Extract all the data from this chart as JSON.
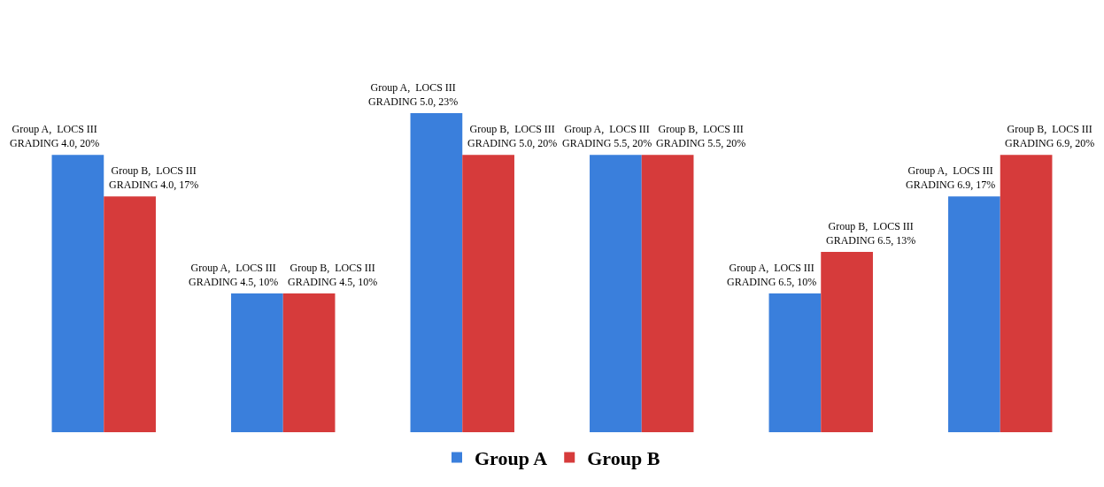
{
  "chart_data": {
    "type": "bar",
    "categories": [
      null,
      null,
      null,
      null,
      null,
      null
    ],
    "series": [
      {
        "name": "Group A",
        "color": "#3a7fdc",
        "values": [
          20,
          10,
          23,
          20,
          10,
          17
        ],
        "value_labels": [
          "Group A,  LOCS III\nGRADING 4.0, 20%",
          "Group A,  LOCS III\nGRADING 4.5, 10%",
          "Group A,  LOCS III\nGRADING 5.0, 23%",
          "Group A,  LOCS III\nGRADING 5.5, 20%",
          "Group A,  LOCS III\nGRADING 6.5, 10%",
          "Group A,  LOCS III\nGRADING 6.9, 17%"
        ]
      },
      {
        "name": "Group B",
        "color": "#d63b3b",
        "values": [
          17,
          10,
          20,
          20,
          13,
          20
        ],
        "value_labels": [
          "Group B,  LOCS III\nGRADING 4.0, 17%",
          "Group B,  LOCS III\nGRADING 4.5, 10%",
          "Group B,  LOCS III\nGRADING 5.0, 20%",
          "Group B,  LOCS III\nGRADING 5.5, 20%",
          "Group B,  LOCS III\nGRADING 6.5, 13%",
          "Group B,  LOCS III\nGRADING 6.9, 20%"
        ]
      }
    ],
    "legend": "bottom"
  }
}
